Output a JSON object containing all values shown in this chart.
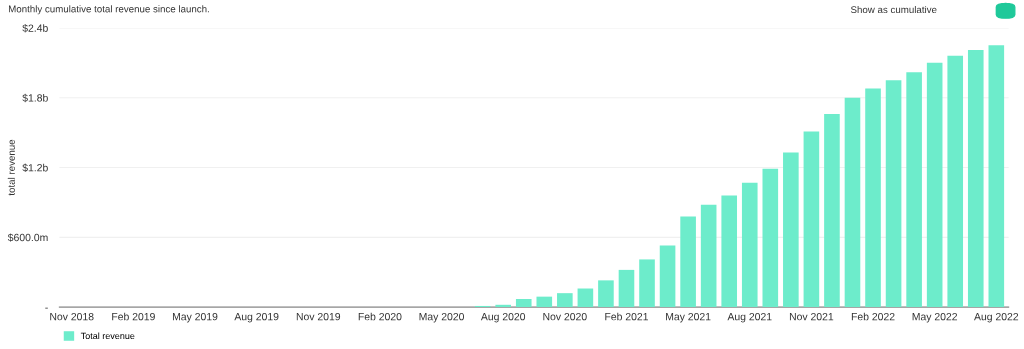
{
  "chart_data": {
    "type": "bar",
    "title": "Monthly cumulative total revenue since launch.",
    "ylabel": "total revenue",
    "annotations": [
      "Show as cumulative"
    ],
    "categories": [
      "Nov 2018",
      null,
      null,
      "Feb 2019",
      null,
      null,
      "May 2019",
      null,
      null,
      "Aug 2019",
      null,
      null,
      "Nov 2019",
      null,
      null,
      "Feb 2020",
      null,
      null,
      "May 2020",
      null,
      null,
      "Aug 2020",
      null,
      null,
      "Nov 2020",
      null,
      null,
      "Feb 2021",
      null,
      null,
      "May 2021",
      null,
      null,
      "Aug 2021",
      null,
      null,
      "Nov 2021",
      null,
      null,
      "Feb 2022",
      null,
      null,
      "May 2022",
      null,
      null,
      "Aug 2022"
    ],
    "series": [
      {
        "name": "Total revenue",
        "color": "#6deccb",
        "values": [
          0,
          0,
          0,
          0,
          0,
          0,
          0,
          0,
          0,
          0,
          0,
          0,
          0,
          0,
          0,
          0,
          0,
          0,
          0,
          0,
          10000000,
          20000000,
          70000000,
          90000000,
          120000000,
          160000000,
          230000000,
          320000000,
          410000000,
          530000000,
          780000000,
          880000000,
          960000000,
          1070000000,
          1190000000,
          1330000000,
          1510000000,
          1660000000,
          1800000000,
          1880000000,
          1950000000,
          2020000000,
          2100000000,
          2160000000,
          2210000000,
          2250000000
        ]
      }
    ],
    "ylim": [
      0,
      2400000000
    ],
    "yticks": [
      {
        "value": 0,
        "label": "-"
      },
      {
        "value": 600000000,
        "label": "$600.0m"
      },
      {
        "value": 1200000000,
        "label": "$1.2b"
      },
      {
        "value": 1800000000,
        "label": "$1.8b"
      },
      {
        "value": 2400000000,
        "label": "$2.4b"
      }
    ],
    "grid": "y",
    "legend": "bottom left"
  }
}
